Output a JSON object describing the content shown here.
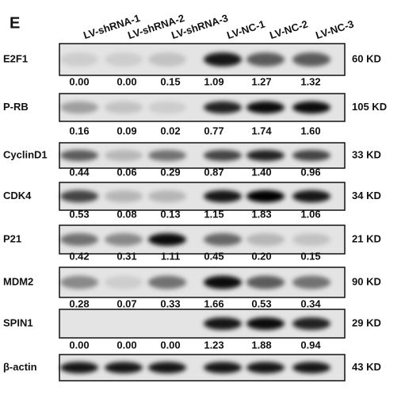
{
  "panel_label": "E",
  "lanes": [
    "LV-shRNA-1",
    "LV-shRNA-2",
    "LV-shRNA-3",
    "LV-NC-1",
    "LV-NC-2",
    "LV-NC-3"
  ],
  "blots": [
    {
      "name": "E2F1",
      "size": "60 KD",
      "values": [
        "0.00",
        "0.00",
        "0.15",
        "1.09",
        "1.27",
        "1.32"
      ]
    },
    {
      "name": "P-RB",
      "size": "105 KD",
      "values": [
        "0.16",
        "0.09",
        "0.02",
        "0.77",
        "1.74",
        "1.60"
      ]
    },
    {
      "name": "CyclinD1",
      "size": "33 KD",
      "values": [
        "0.44",
        "0.06",
        "0.29",
        "0.87",
        "1.40",
        "0.96"
      ]
    },
    {
      "name": "CDK4",
      "size": "34 KD",
      "values": [
        "0.53",
        "0.08",
        "0.13",
        "1.15",
        "1.83",
        "1.06"
      ]
    },
    {
      "name": "P21",
      "size": "21 KD",
      "values": [
        "0.42",
        "0.31",
        "1.11",
        "0.45",
        "0.20",
        "0.15"
      ]
    },
    {
      "name": "MDM2",
      "size": "90 KD",
      "values": [
        "0.28",
        "0.07",
        "0.33",
        "1.66",
        "0.53",
        "0.34"
      ]
    },
    {
      "name": "SPIN1",
      "size": "29 KD",
      "values": [
        "0.00",
        "0.00",
        "0.00",
        "1.23",
        "1.88",
        "0.94"
      ]
    },
    {
      "name": "β-actin",
      "size": "43 KD"
    }
  ]
}
